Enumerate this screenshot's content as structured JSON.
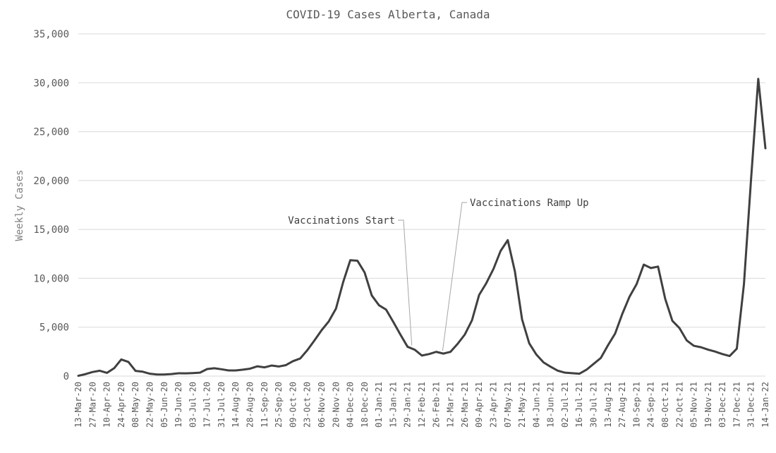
{
  "chart_data": {
    "type": "line",
    "title": "COVID-19 Cases Alberta, Canada",
    "xlabel": "",
    "ylabel": "Weekly Cases",
    "ylim": [
      0,
      35000
    ],
    "yticks": [
      "0",
      "5,000",
      "10,000",
      "15,000",
      "20,000",
      "25,000",
      "30,000",
      "35,000"
    ],
    "grid": "horizontal",
    "line_color": "#404040",
    "x": [
      "13-Mar-20",
      "20-Mar-20",
      "27-Mar-20",
      "03-Apr-20",
      "10-Apr-20",
      "17-Apr-20",
      "24-Apr-20",
      "01-May-20",
      "08-May-20",
      "15-May-20",
      "22-May-20",
      "29-May-20",
      "05-Jun-20",
      "12-Jun-20",
      "19-Jun-20",
      "26-Jun-20",
      "03-Jul-20",
      "10-Jul-20",
      "17-Jul-20",
      "24-Jul-20",
      "31-Jul-20",
      "07-Aug-20",
      "14-Aug-20",
      "21-Aug-20",
      "28-Aug-20",
      "04-Sep-20",
      "11-Sep-20",
      "18-Sep-20",
      "25-Sep-20",
      "02-Oct-20",
      "09-Oct-20",
      "16-Oct-20",
      "23-Oct-20",
      "30-Oct-20",
      "06-Nov-20",
      "13-Nov-20",
      "20-Nov-20",
      "27-Nov-20",
      "04-Dec-20",
      "11-Dec-20",
      "18-Dec-20",
      "25-Dec-20",
      "01-Jan-21",
      "08-Jan-21",
      "15-Jan-21",
      "22-Jan-21",
      "29-Jan-21",
      "05-Feb-21",
      "12-Feb-21",
      "19-Feb-21",
      "26-Feb-21",
      "05-Mar-21",
      "12-Mar-21",
      "19-Mar-21",
      "26-Mar-21",
      "02-Apr-21",
      "09-Apr-21",
      "16-Apr-21",
      "23-Apr-21",
      "30-Apr-21",
      "07-May-21",
      "14-May-21",
      "21-May-21",
      "28-May-21",
      "04-Jun-21",
      "11-Jun-21",
      "18-Jun-21",
      "25-Jun-21",
      "02-Jul-21",
      "09-Jul-21",
      "16-Jul-21",
      "23-Jul-21",
      "30-Jul-21",
      "06-Aug-21",
      "13-Aug-21",
      "20-Aug-21",
      "27-Aug-21",
      "03-Sep-21",
      "10-Sep-21",
      "17-Sep-21",
      "24-Sep-21",
      "01-Oct-21",
      "08-Oct-21",
      "15-Oct-21",
      "22-Oct-21",
      "29-Oct-21",
      "05-Nov-21",
      "12-Nov-21",
      "19-Nov-21",
      "26-Nov-21",
      "03-Dec-21",
      "10-Dec-21",
      "17-Dec-21",
      "24-Dec-21",
      "31-Dec-21",
      "07-Jan-22",
      "14-Jan-22"
    ],
    "x_tick_labels": [
      "13-Mar-20",
      "27-Mar-20",
      "10-Apr-20",
      "24-Apr-20",
      "08-May-20",
      "22-May-20",
      "05-Jun-20",
      "19-Jun-20",
      "03-Jul-20",
      "17-Jul-20",
      "31-Jul-20",
      "14-Aug-20",
      "28-Aug-20",
      "11-Sep-20",
      "25-Sep-20",
      "09-Oct-20",
      "23-Oct-20",
      "06-Nov-20",
      "20-Nov-20",
      "04-Dec-20",
      "18-Dec-20",
      "01-Jan-21",
      "15-Jan-21",
      "29-Jan-21",
      "12-Feb-21",
      "26-Feb-21",
      "12-Mar-21",
      "26-Mar-21",
      "09-Apr-21",
      "23-Apr-21",
      "07-May-21",
      "21-May-21",
      "04-Jun-21",
      "18-Jun-21",
      "02-Jul-21",
      "16-Jul-21",
      "30-Jul-21",
      "13-Aug-21",
      "27-Aug-21",
      "10-Sep-21",
      "24-Sep-21",
      "08-Oct-21",
      "22-Oct-21",
      "05-Nov-21",
      "19-Nov-21",
      "03-Dec-21",
      "17-Dec-21",
      "31-Dec-21",
      "14-Jan-22"
    ],
    "series": [
      {
        "values": [
          30,
          200,
          420,
          550,
          330,
          800,
          1700,
          1450,
          530,
          450,
          240,
          160,
          160,
          210,
          290,
          280,
          310,
          350,
          720,
          800,
          700,
          580,
          580,
          660,
          760,
          1000,
          890,
          1080,
          980,
          1120,
          1530,
          1800,
          2650,
          3650,
          4700,
          5600,
          6900,
          9600,
          11850,
          11800,
          10600,
          8250,
          7250,
          6800,
          5550,
          4250,
          3000,
          2700,
          2100,
          2250,
          2480,
          2300,
          2480,
          3300,
          4250,
          5700,
          8300,
          9500,
          10950,
          12800,
          13900,
          10700,
          5800,
          3350,
          2200,
          1400,
          950,
          550,
          350,
          300,
          240,
          650,
          1250,
          1850,
          3150,
          4350,
          6350,
          8100,
          9400,
          11400,
          11050,
          11200,
          7900,
          5650,
          4900,
          3650,
          3100,
          2950,
          2700,
          2500,
          2250,
          2050,
          2800,
          9400,
          20200,
          30400,
          23300
        ]
      }
    ],
    "annotations": [
      {
        "text": "Vaccinations Start",
        "date": "29-Jan-21"
      },
      {
        "text": "Vaccinations Ramp Up",
        "date": "05-Mar-21"
      }
    ]
  }
}
